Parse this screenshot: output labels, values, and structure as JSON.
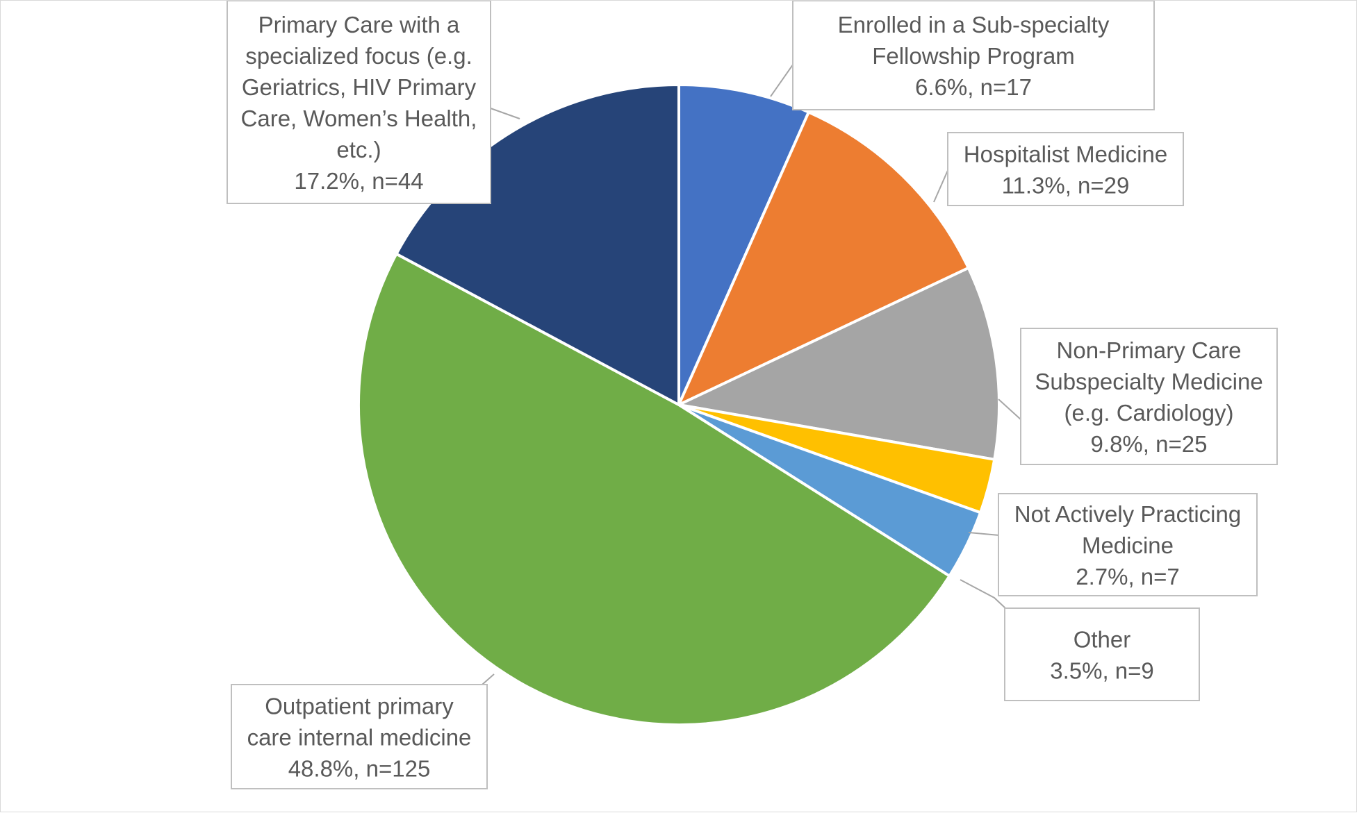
{
  "chart_data": {
    "type": "pie",
    "title": "",
    "start_angle_deg": 0,
    "direction": "clockwise",
    "slices": [
      {
        "name": "Enrolled in a Sub-specialty Fellowship Program",
        "value": 17,
        "percent": 6.6,
        "color": "#4472C4",
        "label_lines": [
          "Enrolled in a Sub-specialty",
          "Fellowship Program",
          "6.6%, n=17"
        ]
      },
      {
        "name": "Hospitalist Medicine",
        "value": 29,
        "percent": 11.3,
        "color": "#ED7D31",
        "label_lines": [
          "Hospitalist Medicine",
          "11.3%, n=29"
        ]
      },
      {
        "name": "Non-Primary Care Subspecialty Medicine (e.g. Cardiology)",
        "value": 25,
        "percent": 9.8,
        "color": "#A5A5A5",
        "label_lines": [
          "Non-Primary Care",
          "Subspecialty Medicine",
          "(e.g. Cardiology)",
          "9.8%, n=25"
        ]
      },
      {
        "name": "Not Actively Practicing Medicine",
        "value": 7,
        "percent": 2.7,
        "color": "#FFC000",
        "label_lines": [
          "Not Actively Practicing",
          "Medicine",
          "2.7%, n=7"
        ]
      },
      {
        "name": "Other",
        "value": 9,
        "percent": 3.5,
        "color": "#5B9BD5",
        "label_lines": [
          "Other",
          "3.5%, n=9"
        ]
      },
      {
        "name": "Outpatient primary care internal medicine",
        "value": 125,
        "percent": 48.8,
        "color": "#70AD47",
        "label_lines": [
          "Outpatient primary",
          "care internal medicine",
          "48.8%, n=125"
        ]
      },
      {
        "name": "Primary Care with a specialized focus (e.g. Geriatrics, HIV Primary Care, Women’s Health, etc.)",
        "value": 44,
        "percent": 17.2,
        "color": "#264478",
        "label_lines": [
          "Primary Care with a",
          "specialized focus (e.g.",
          "Geriatrics, HIV Primary",
          "Care, Women’s Health,",
          "etc.)",
          "17.2%, n=44"
        ]
      }
    ]
  }
}
